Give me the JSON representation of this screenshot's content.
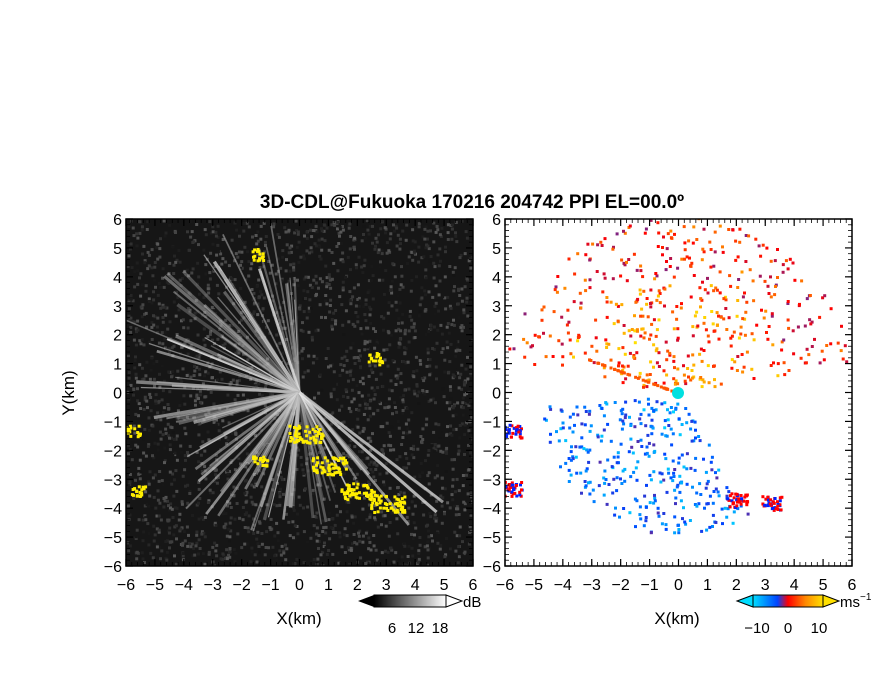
{
  "chart_data": [
    {
      "type": "heatmap",
      "title": "3D-CDL@Fukuoka 170216 204742 PPI EL=00.0º",
      "xlabel": "X(km)",
      "ylabel": "Y(km)",
      "xlim": [
        -6,
        6
      ],
      "ylim": [
        -6,
        6
      ],
      "x_ticks": [
        "−6",
        "−5",
        "−4",
        "−3",
        "−2",
        "−1",
        "0",
        "1",
        "2",
        "3",
        "4",
        "5",
        "6"
      ],
      "y_ticks": [
        "6",
        "5",
        "4",
        "3",
        "2",
        "1",
        "0",
        "−1",
        "−2",
        "−3",
        "−4",
        "−5",
        "−6"
      ],
      "colorbar": {
        "unit": "dB",
        "ticks": [
          "6",
          "12",
          "18"
        ],
        "range": [
          0,
          24
        ],
        "colors": [
          "#000000",
          "#ffffff"
        ]
      },
      "highlight_color": "#ffee00",
      "description_values": {
        "bright_sectors_deg": [
          95,
          105,
          118,
          128,
          140,
          150,
          160,
          175,
          190,
          200,
          215,
          228,
          240,
          253,
          265,
          280,
          292,
          305,
          320
        ],
        "highlight_clusters_xy_km": [
          [
            0.2,
            -1.4
          ],
          [
            1.0,
            -2.5
          ],
          [
            2.0,
            -3.4
          ],
          [
            3.0,
            -3.8
          ],
          [
            -5.8,
            -1.3
          ],
          [
            -5.6,
            -3.4
          ],
          [
            2.6,
            1.2
          ],
          [
            -1.4,
            -2.3
          ],
          [
            -1.5,
            4.8
          ]
        ]
      }
    },
    {
      "type": "heatmap",
      "xlabel": "X(km)",
      "xlim": [
        -6,
        6
      ],
      "ylim": [
        -6,
        6
      ],
      "x_ticks": [
        "−6",
        "−5",
        "−4",
        "−3",
        "−2",
        "−1",
        "0",
        "1",
        "2",
        "3",
        "4",
        "5",
        "6"
      ],
      "y_ticks": [
        "6",
        "5",
        "4",
        "3",
        "2",
        "1",
        "0",
        "−1",
        "−2",
        "−3",
        "−4",
        "−5",
        "−6"
      ],
      "colorbar": {
        "unit": "ms",
        "unit_exponent": "−1",
        "ticks": [
          "−10",
          "0",
          "10"
        ],
        "range": [
          -15,
          15
        ],
        "colors": [
          "#00ddff",
          "#0044ff",
          "#ff0000",
          "#ffe000"
        ]
      },
      "description_values": {
        "towards_sector_deg": [
          10,
          170
        ],
        "away_sector_deg": [
          185,
          300
        ],
        "edge_clusters_xy_km": [
          [
            -5.8,
            -1.3
          ],
          [
            -5.8,
            -3.3
          ],
          [
            2.0,
            -3.7
          ],
          [
            3.2,
            -3.8
          ]
        ]
      }
    }
  ]
}
